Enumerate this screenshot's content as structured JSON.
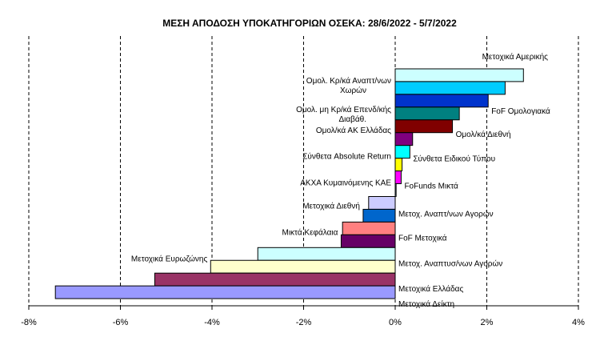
{
  "chart_data": {
    "type": "bar",
    "orientation": "horizontal",
    "title": "ΜΕΣΗ ΑΠΟΔΟΣΗ ΥΠΟΚΑΤΗΓΟΡΙΩΝ  ΟΣΕΚΑ: 28/6/2022  - 5/7/2022",
    "xlabel": "",
    "ylabel": "",
    "xlim": [
      -8,
      4
    ],
    "xticks": [
      "-8%",
      "-6%",
      "-4%",
      "-2%",
      "0%",
      "2%",
      "4%"
    ],
    "grid": "vertical dashed",
    "legend": "none",
    "categories": [
      {
        "label": "Μετοχικά Αμερικής",
        "value": 2.8,
        "color": "#ccffff"
      },
      {
        "label": "Ομολ. Κρ/κά Αναπτ/νων Χωρών",
        "value": 2.4,
        "color": "#00ccff"
      },
      {
        "label": "FoF Ομολογιακά",
        "value": 2.03,
        "color": "#0033cc"
      },
      {
        "label": "Ομολ. μη Κρ/κά Επενδ/κής Διαβάθ.",
        "value": 1.4,
        "color": "#008080"
      },
      {
        "label": "Ομολ/κά Διεθνή",
        "value": 1.25,
        "color": "#800000"
      },
      {
        "label": "Ομολ/κά ΑΚ Ελλάδας",
        "value": 0.38,
        "color": "#800080"
      },
      {
        "label": "Σύνθετα Ειδικού Τύπου",
        "value": 0.32,
        "color": "#00ffff"
      },
      {
        "label": "Σύνθετα Absolute Return",
        "value": 0.15,
        "color": "#ffff00"
      },
      {
        "label": "FoFunds Μικτά",
        "value": 0.13,
        "color": "#ff00ff"
      },
      {
        "label": "ΑΚΧΑ Κυμαινόμενης ΚΑΕ",
        "value": 0.02,
        "color": "#99ccff"
      },
      {
        "label": "Μετοχ. Αναπτ/νων Αγορών",
        "value": -0.58,
        "color": "#ccccff"
      },
      {
        "label": "Μετοχικά Διεθνή",
        "value": -0.7,
        "color": "#0066cc"
      },
      {
        "label": "FoF Μετοχικά",
        "value": -1.15,
        "color": "#ff8080"
      },
      {
        "label": "Μικτά Κεφάλαια",
        "value": -1.18,
        "color": "#660066"
      },
      {
        "label": "Μετοχ. Αναπτυσ/νων Αγορών",
        "value": -3.0,
        "color": "#ccffff"
      },
      {
        "label": "Μετοχικά Ευρωζώνης",
        "value": -4.03,
        "color": "#ffffcc"
      },
      {
        "label": "Μετοχικά Ελλάδας",
        "value": -5.25,
        "color": "#993366"
      },
      {
        "label": "Μετοχικά Δείκτη",
        "value": -7.42,
        "color": "#9999ff"
      }
    ]
  }
}
